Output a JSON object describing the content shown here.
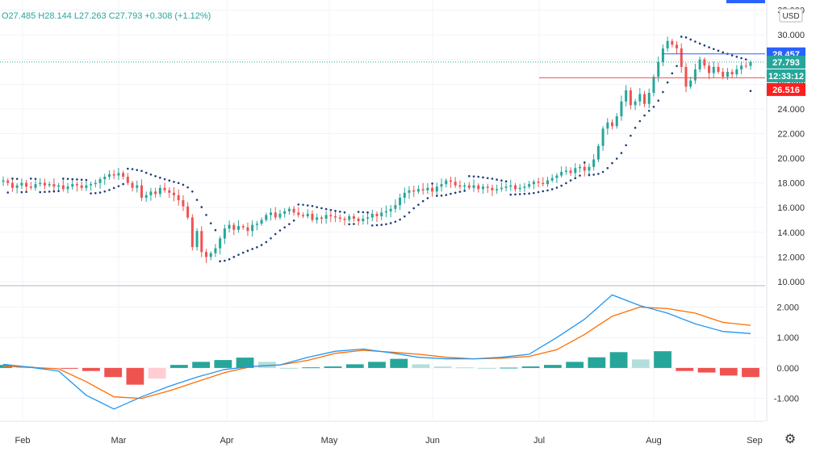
{
  "header": {
    "ohlc_text": "O27.485 H28.144 L27.263 C27.793 +0.308 (+1.12%)"
  },
  "currency_label": "USD",
  "colors": {
    "up": "#26a69a",
    "down": "#ef5350",
    "sar": "#1f3d7a",
    "macd_line": "#2196f3",
    "signal_line": "#ff6d00",
    "hist_up_strong": "#26a69a",
    "hist_up_weak": "#b2dfdb",
    "hist_down_strong": "#ef5350",
    "hist_down_weak": "#ffcdd2",
    "high_label_bg": "#2962ff",
    "close_label_bg": "#26a69a",
    "low_label_bg": "#ff1e1e"
  },
  "chart_data": [
    {
      "type": "candlestick",
      "title": "",
      "x_labels": [
        "Feb",
        "Mar",
        "Apr",
        "May",
        "Jun",
        "Jul",
        "Aug",
        "Sep"
      ],
      "y_ticks": [
        10.0,
        12.0,
        14.0,
        16.0,
        18.0,
        20.0,
        22.0,
        24.0,
        26.0,
        28.0,
        30.0,
        32.0
      ],
      "y_tick_labels": [
        "10.000",
        "12.000",
        "14.000",
        "16.000",
        "18.000",
        "20.000",
        "22.000",
        "24.000",
        "26.000",
        "28.000",
        "30.000",
        "32.000"
      ],
      "ylim": [
        9.8,
        32.3
      ],
      "close_series": [
        18.2,
        18.0,
        17.6,
        17.8,
        18.0,
        17.7,
        17.6,
        17.9,
        18.0,
        17.8,
        17.9,
        17.7,
        17.8,
        17.5,
        17.7,
        17.9,
        17.8,
        17.6,
        17.8,
        17.9,
        18.0,
        18.3,
        18.5,
        18.7,
        18.6,
        18.8,
        18.5,
        18.0,
        17.6,
        17.8,
        16.8,
        17.0,
        17.3,
        17.1,
        17.6,
        17.4,
        17.2,
        17.0,
        16.6,
        16.1,
        15.2,
        12.8,
        14.1,
        12.4,
        12.0,
        12.3,
        12.7,
        13.5,
        14.3,
        14.6,
        14.2,
        14.5,
        14.4,
        14.1,
        14.6,
        14.7,
        15.0,
        15.4,
        15.6,
        15.2,
        15.5,
        15.7,
        15.9,
        15.6,
        15.4,
        15.3,
        15.5,
        15.0,
        15.2,
        15.1,
        15.4,
        15.3,
        15.2,
        15.1,
        15.0,
        15.3,
        15.1,
        14.9,
        15.1,
        15.2,
        15.5,
        15.3,
        15.6,
        15.7,
        15.9,
        16.2,
        16.8,
        17.2,
        17.4,
        17.3,
        17.5,
        17.4,
        17.6,
        17.3,
        17.7,
        17.9,
        18.2,
        18.1,
        17.8,
        17.7,
        17.8,
        17.6,
        17.8,
        17.5,
        17.7,
        17.6,
        17.4,
        17.5,
        17.6,
        17.7,
        17.8,
        17.5,
        17.6,
        17.7,
        17.9,
        18.1,
        18.0,
        17.9,
        18.2,
        18.4,
        18.6,
        18.9,
        19.0,
        18.8,
        19.2,
        19.3,
        19.0,
        19.3,
        19.9,
        21.0,
        22.4,
        22.9,
        22.6,
        23.4,
        24.6,
        25.5,
        24.3,
        24.6,
        25.2,
        24.4,
        25.3,
        26.6,
        27.8,
        28.9,
        29.5,
        29.2,
        28.9,
        27.4,
        25.8,
        26.3,
        27.2,
        28.0,
        27.5,
        26.9,
        27.4,
        27.0,
        26.6,
        27.0,
        26.8,
        27.2,
        27.5,
        27.485,
        27.793
      ]
    },
    {
      "type": "macd",
      "y_ticks": [
        -1.0,
        0.0,
        1.0,
        2.0
      ],
      "y_tick_labels": [
        "-1.000",
        "0.000",
        "1.000",
        "2.000"
      ],
      "ylim": [
        -1.7,
        2.65
      ],
      "macd": [
        0.12,
        0.02,
        -0.1,
        -0.9,
        -1.35,
        -0.95,
        -0.6,
        -0.3,
        -0.05,
        0.05,
        0.1,
        0.35,
        0.55,
        0.62,
        0.5,
        0.35,
        0.3,
        0.3,
        0.35,
        0.45,
        1.0,
        1.6,
        2.4,
        2.05,
        1.8,
        1.45,
        1.2,
        1.13
      ],
      "signal": [
        0.06,
        0.02,
        -0.03,
        -0.45,
        -0.95,
        -1.0,
        -0.75,
        -0.45,
        -0.15,
        0.05,
        0.1,
        0.25,
        0.48,
        0.58,
        0.52,
        0.45,
        0.35,
        0.3,
        0.32,
        0.38,
        0.6,
        1.1,
        1.7,
        2.0,
        1.95,
        1.8,
        1.5,
        1.4
      ],
      "histogram": [
        0.1,
        0.06,
        0.0,
        -0.02,
        -0.1,
        -0.3,
        -0.55,
        -0.35,
        0.1,
        0.2,
        0.26,
        0.34,
        0.2,
        0.0,
        0.02,
        0.05,
        0.12,
        0.2,
        0.3,
        0.12,
        0.05,
        0.02,
        0.0,
        0.01,
        0.05,
        0.1,
        0.2,
        0.35,
        0.52,
        0.28,
        0.55,
        -0.1,
        -0.15,
        -0.25,
        -0.3
      ]
    }
  ],
  "price_labels": {
    "high": "28.457",
    "close": "27.793",
    "countdown": "12:33:12",
    "low": "26.516"
  },
  "price_levels": {
    "high": 28.457,
    "close": 27.793,
    "low": 26.516
  },
  "settings_icon": "gear-icon"
}
